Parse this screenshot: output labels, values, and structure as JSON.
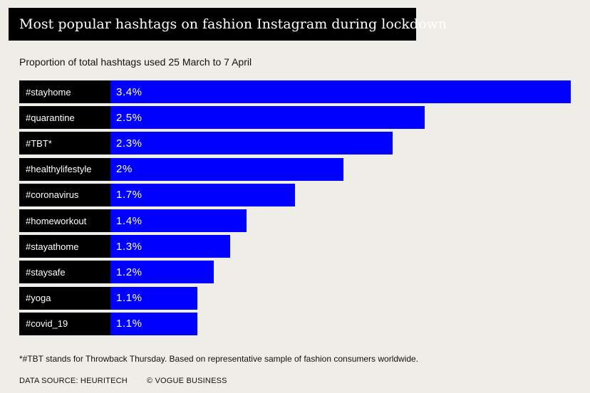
{
  "header": {
    "title": "Most popular hashtags on fashion Instagram during lockdown",
    "subtitle": "Proportion of total hashtags used 25 March to 7 April"
  },
  "colors": {
    "background": "#efede7",
    "bar": "#0000ff",
    "label_box": "#000000",
    "title_box": "#000000"
  },
  "chart_data": {
    "type": "bar",
    "orientation": "horizontal",
    "categories": [
      "#stayhome",
      "#quarantine",
      "#TBT*",
      "#healthylifestyle",
      "#coronavirus",
      "#homeworkout",
      "#stayathome",
      "#staysafe",
      "#yoga",
      "#covid_19"
    ],
    "values": [
      3.4,
      2.5,
      2.3,
      2.0,
      1.7,
      1.4,
      1.3,
      1.2,
      1.1,
      1.1
    ],
    "value_labels": [
      "3.4%",
      "2.5%",
      "2.3%",
      "2%",
      "1.7%",
      "1.4%",
      "1.3%",
      "1.2%",
      "1.1%",
      "1.1%"
    ],
    "title": "Most popular hashtags on fashion Instagram during lockdown",
    "subtitle": "Proportion of total hashtags used 25 March to 7 April",
    "xlabel": "",
    "ylabel": "",
    "xlim": [
      0,
      3.4
    ],
    "grid": false,
    "legend": "none"
  },
  "footer": {
    "footnote": "*#TBT stands for Throwback Thursday. Based on representative sample of fashion consumers worldwide.",
    "source": "DATA SOURCE: HEURITECH",
    "copyright": "© VOGUE BUSINESS"
  }
}
